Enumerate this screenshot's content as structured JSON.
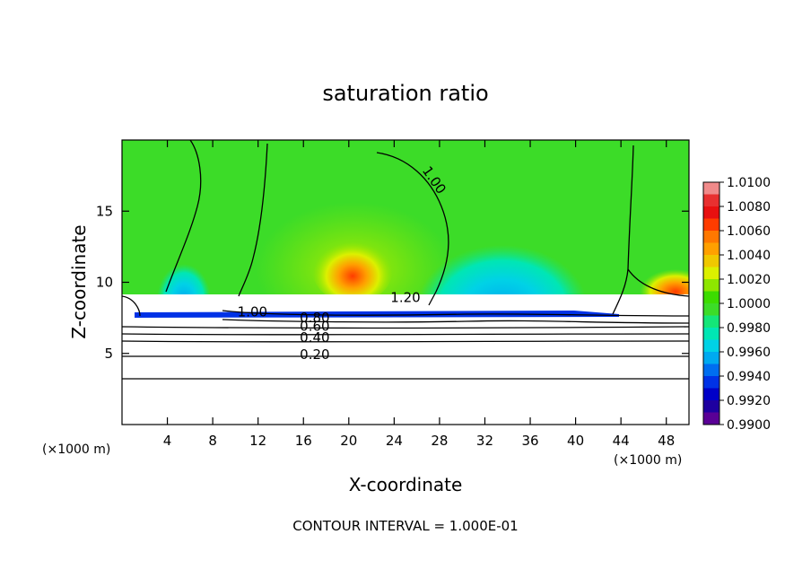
{
  "chart_data": {
    "type": "heatmap",
    "title": "saturation ratio",
    "xlabel": "X-coordinate",
    "ylabel": "Z-coordinate",
    "x_units_left": "(×1000 m)",
    "x_units_right": "(×1000 m)",
    "xlim": [
      0,
      50
    ],
    "ylim": [
      0,
      20
    ],
    "x_ticks": [
      4,
      8,
      12,
      16,
      20,
      24,
      28,
      32,
      36,
      40,
      44,
      48
    ],
    "y_ticks": [
      5,
      10,
      15
    ],
    "footer": "CONTOUR INTERVAL = 1.000E-01",
    "colorbar": {
      "min": 0.99,
      "max": 1.01,
      "tick_labels": [
        "1.0100",
        "1.0080",
        "1.0060",
        "1.0040",
        "1.0020",
        "1.0000",
        "0.9980",
        "0.9960",
        "0.9940",
        "0.9920",
        "0.9900"
      ],
      "bands": [
        {
          "value": 1.0095,
          "color": "#f08a8a"
        },
        {
          "value": 1.0085,
          "color": "#e83030"
        },
        {
          "value": 1.0075,
          "color": "#e81010"
        },
        {
          "value": 1.0065,
          "color": "#ff3c00"
        },
        {
          "value": 1.0055,
          "color": "#ff7800"
        },
        {
          "value": 1.0045,
          "color": "#ffa000"
        },
        {
          "value": 1.0035,
          "color": "#f0c800"
        },
        {
          "value": 1.0025,
          "color": "#dcf000"
        },
        {
          "value": 1.0015,
          "color": "#8ee600"
        },
        {
          "value": 1.0005,
          "color": "#3cdc00"
        },
        {
          "value": 0.9995,
          "color": "#3cdc28"
        },
        {
          "value": 0.9985,
          "color": "#14e678"
        },
        {
          "value": 0.9975,
          "color": "#00e6b4"
        },
        {
          "value": 0.9965,
          "color": "#00d2e6"
        },
        {
          "value": 0.9955,
          "color": "#00aaf0"
        },
        {
          "value": 0.9945,
          "color": "#006ef0"
        },
        {
          "value": 0.9935,
          "color": "#0032e6"
        },
        {
          "value": 0.9925,
          "color": "#0000c8"
        },
        {
          "value": 0.9915,
          "color": "#1e00a0"
        },
        {
          "value": 0.9905,
          "color": "#5a0096"
        }
      ]
    },
    "contour_labels": [
      {
        "text": "1.00",
        "x": 27.2,
        "z": 17.0,
        "rotate": 55
      },
      {
        "text": "1.20",
        "x": 25.0,
        "z": 8.6,
        "rotate": 0
      },
      {
        "text": "1.00",
        "x": 11.5,
        "z": 7.6,
        "rotate": 0
      },
      {
        "text": "0.80",
        "x": 17.0,
        "z": 7.2,
        "rotate": 0
      },
      {
        "text": "0.60",
        "x": 17.0,
        "z": 6.6,
        "rotate": 0
      },
      {
        "text": "0.40",
        "x": 17.0,
        "z": 5.8,
        "rotate": 0
      },
      {
        "text": "0.20",
        "x": 17.0,
        "z": 4.6,
        "rotate": 0
      }
    ]
  }
}
